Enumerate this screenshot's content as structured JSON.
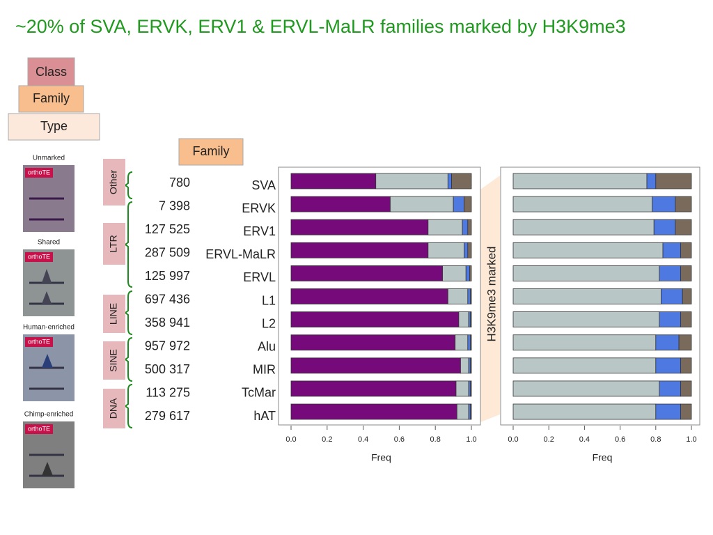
{
  "title": "~20% of SVA, ERVK, ERV1 & ERVL-MaLR families marked by H3K9me3",
  "hierarchy": [
    "Class",
    "Family",
    "Type"
  ],
  "family_header": "Family",
  "panels": [
    {
      "label": "Unmarked",
      "tag": "orthoTE"
    },
    {
      "label": "Shared",
      "tag": "orthoTE"
    },
    {
      "label": "Human-enriched",
      "tag": "orthoTE"
    },
    {
      "label": "Chimp-enriched",
      "tag": "orthoTE"
    }
  ],
  "classes": [
    {
      "label": "Other",
      "counts": [
        "780"
      ]
    },
    {
      "label": "LTR",
      "counts": [
        "7 398",
        "127 525",
        "287 509",
        "125 997"
      ]
    },
    {
      "label": "LINE",
      "counts": [
        "697 436",
        "358 941"
      ]
    },
    {
      "label": "SINE",
      "counts": [
        "957 972",
        "500 317"
      ]
    },
    {
      "label": "DNA",
      "counts": [
        "113 275",
        "279 617"
      ]
    }
  ],
  "chart_data": [
    {
      "type": "stacked-bar-horizontal",
      "x_label": "Freq",
      "categories": [
        "SVA",
        "ERVK",
        "ERV1",
        "ERVL-MaLR",
        "ERVL",
        "L1",
        "L2",
        "Alu",
        "MIR",
        "TcMar",
        "hAT"
      ],
      "series": [
        {
          "color": "#760a7a",
          "values": [
            0.47,
            0.55,
            0.76,
            0.76,
            0.84,
            0.87,
            0.93,
            0.91,
            0.94,
            0.915,
            0.92
          ]
        },
        {
          "color": "#b8c6c6",
          "values": [
            0.4,
            0.35,
            0.19,
            0.2,
            0.13,
            0.11,
            0.055,
            0.07,
            0.045,
            0.07,
            0.065
          ]
        },
        {
          "color": "#4e79e0",
          "values": [
            0.02,
            0.06,
            0.03,
            0.02,
            0.02,
            0.015,
            0.01,
            0.015,
            0.01,
            0.01,
            0.01
          ]
        },
        {
          "color": "#7a6a5c",
          "values": [
            0.11,
            0.04,
            0.02,
            0.02,
            0.01,
            0.005,
            0.005,
            0.005,
            0.005,
            0.005,
            0.005
          ]
        }
      ],
      "xlim": [
        0,
        1
      ],
      "xticks": [
        {
          "value": 0,
          "label": "0.0"
        },
        {
          "value": 0.2,
          "label": "0.2"
        },
        {
          "value": 0.4,
          "label": "0.4"
        },
        {
          "value": 0.6,
          "label": "0.6"
        },
        {
          "value": 0.8,
          "label": "0.8"
        },
        {
          "value": 1,
          "label": "1.0"
        }
      ]
    },
    {
      "type": "stacked-bar-horizontal",
      "x_label": "Freq",
      "annotation": "H3K9me3 marked",
      "series": [
        {
          "color": "#b8c6c6",
          "values": [
            0.75,
            0.78,
            0.79,
            0.84,
            0.82,
            0.83,
            0.82,
            0.8,
            0.8,
            0.82,
            0.8
          ]
        },
        {
          "color": "#4e79e0",
          "values": [
            0.05,
            0.13,
            0.12,
            0.1,
            0.12,
            0.12,
            0.12,
            0.13,
            0.14,
            0.12,
            0.14
          ]
        },
        {
          "color": "#7a6a5c",
          "values": [
            0.2,
            0.09,
            0.09,
            0.06,
            0.06,
            0.05,
            0.06,
            0.07,
            0.06,
            0.06,
            0.06
          ]
        }
      ],
      "xlim": [
        0,
        1
      ],
      "xticks": [
        {
          "value": 0,
          "label": "0.0"
        },
        {
          "value": 0.2,
          "label": "0.2"
        },
        {
          "value": 0.4,
          "label": "0.4"
        },
        {
          "value": 0.6,
          "label": "0.6"
        },
        {
          "value": 0.8,
          "label": "0.8"
        },
        {
          "value": 1,
          "label": "1.0"
        }
      ]
    }
  ]
}
